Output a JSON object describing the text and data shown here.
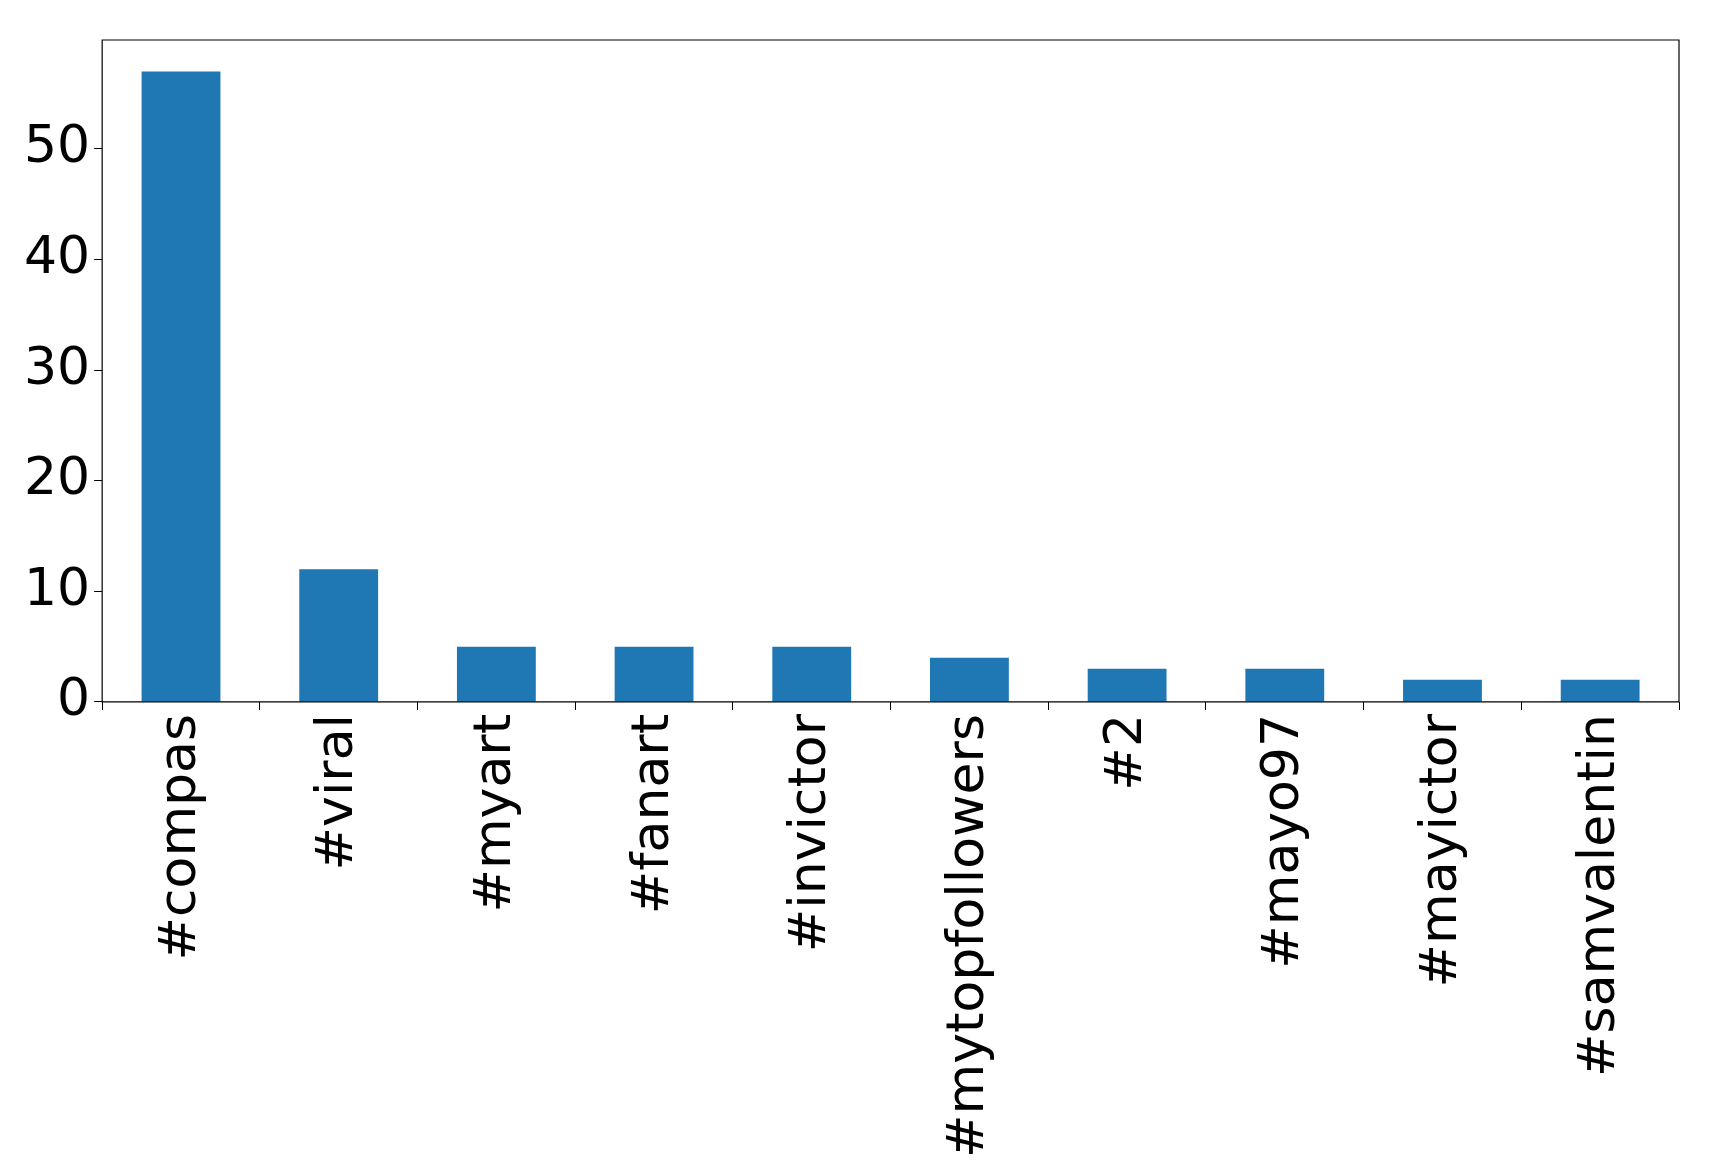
{
  "chart_data": {
    "type": "bar",
    "categories": [
      "#compas",
      "#viral",
      "#myart",
      "#fanart",
      "#invictor",
      "#mytopfollowers",
      "#2",
      "#mayo97",
      "#mayictor",
      "#samvalentin"
    ],
    "values": [
      57,
      12,
      5,
      5,
      5,
      4,
      3,
      3,
      2,
      2
    ],
    "color": "#1f77b4",
    "ylim": [
      0,
      59.85
    ],
    "yticks": [
      0,
      10,
      20,
      30,
      40,
      50
    ],
    "grid": false,
    "legend": false
  }
}
